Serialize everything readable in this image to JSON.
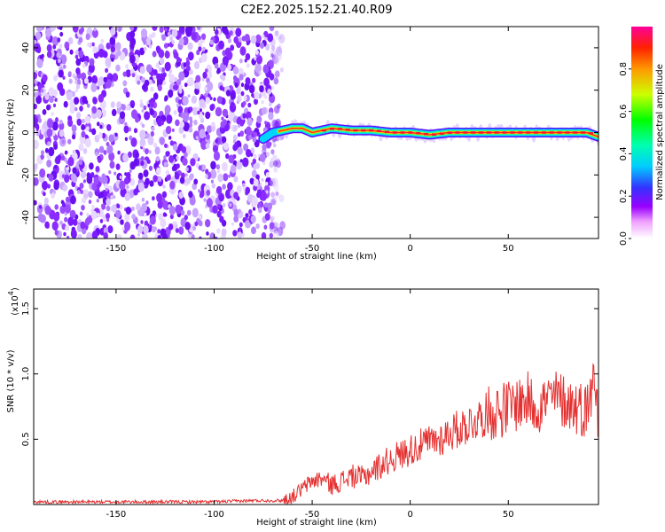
{
  "title": "C2E2.2025.152.21.40.R09",
  "chart_data": [
    {
      "type": "heatmap",
      "xlabel": "Height of straight line (km)",
      "ylabel": "Frequency (Hz)",
      "xlim": [
        -192,
        96
      ],
      "ylim": [
        -50,
        50
      ],
      "xticks": [
        -150,
        -100,
        -50,
        0,
        50
      ],
      "yticks": [
        -40,
        -20,
        0,
        20,
        40
      ],
      "noise_region_x": [
        -192,
        -65
      ],
      "signal_ridge": {
        "x": [
          -75,
          -70,
          -65,
          -60,
          -55,
          -50,
          -45,
          -40,
          -30,
          -20,
          -10,
          0,
          10,
          20,
          30,
          40,
          50,
          60,
          70,
          80,
          90,
          96
        ],
        "frequency": [
          -3,
          0,
          1,
          2,
          2,
          0,
          1,
          2,
          1,
          1,
          0,
          0,
          -1,
          0,
          0,
          0,
          0,
          0,
          0,
          0,
          0,
          -2
        ]
      },
      "colorbar": {
        "label": "Normalized spectral amplitude",
        "range": [
          0,
          1
        ],
        "ticks": [
          "0.0",
          "0.2",
          "0.4",
          "0.6",
          "0.8"
        ]
      }
    },
    {
      "type": "line",
      "xlabel": "Height of straight line (km)",
      "ylabel": "SNR (10 * v/v)",
      "y_multiplier": "(x10",
      "y_multiplier_exp": "4",
      "xlim": [
        -192,
        96
      ],
      "ylim": [
        0,
        1.65
      ],
      "xticks": [
        -150,
        -100,
        -50,
        0,
        50
      ],
      "yticks": [
        "0.5",
        "1.0",
        "1.5"
      ],
      "color": "#e53030",
      "series": [
        {
          "x": [
            -192,
            -160,
            -130,
            -100,
            -80,
            -65,
            -60,
            -55,
            -50,
            -45,
            -40,
            -35,
            -30,
            -25,
            -20,
            -15,
            -10,
            -5,
            0,
            5,
            10,
            15,
            20,
            25,
            30,
            35,
            40,
            45,
            50,
            55,
            60,
            65,
            70,
            75,
            80,
            85,
            90,
            92,
            94,
            96
          ],
          "y": [
            0.02,
            0.02,
            0.02,
            0.02,
            0.03,
            0.03,
            0.06,
            0.12,
            0.18,
            0.2,
            0.15,
            0.18,
            0.22,
            0.2,
            0.25,
            0.3,
            0.35,
            0.38,
            0.42,
            0.45,
            0.48,
            0.5,
            0.55,
            0.58,
            0.62,
            0.66,
            0.7,
            0.72,
            0.74,
            0.78,
            0.8,
            0.75,
            0.8,
            0.82,
            0.78,
            0.75,
            0.72,
            0.8,
            1.1,
            0.55
          ]
        }
      ]
    }
  ]
}
